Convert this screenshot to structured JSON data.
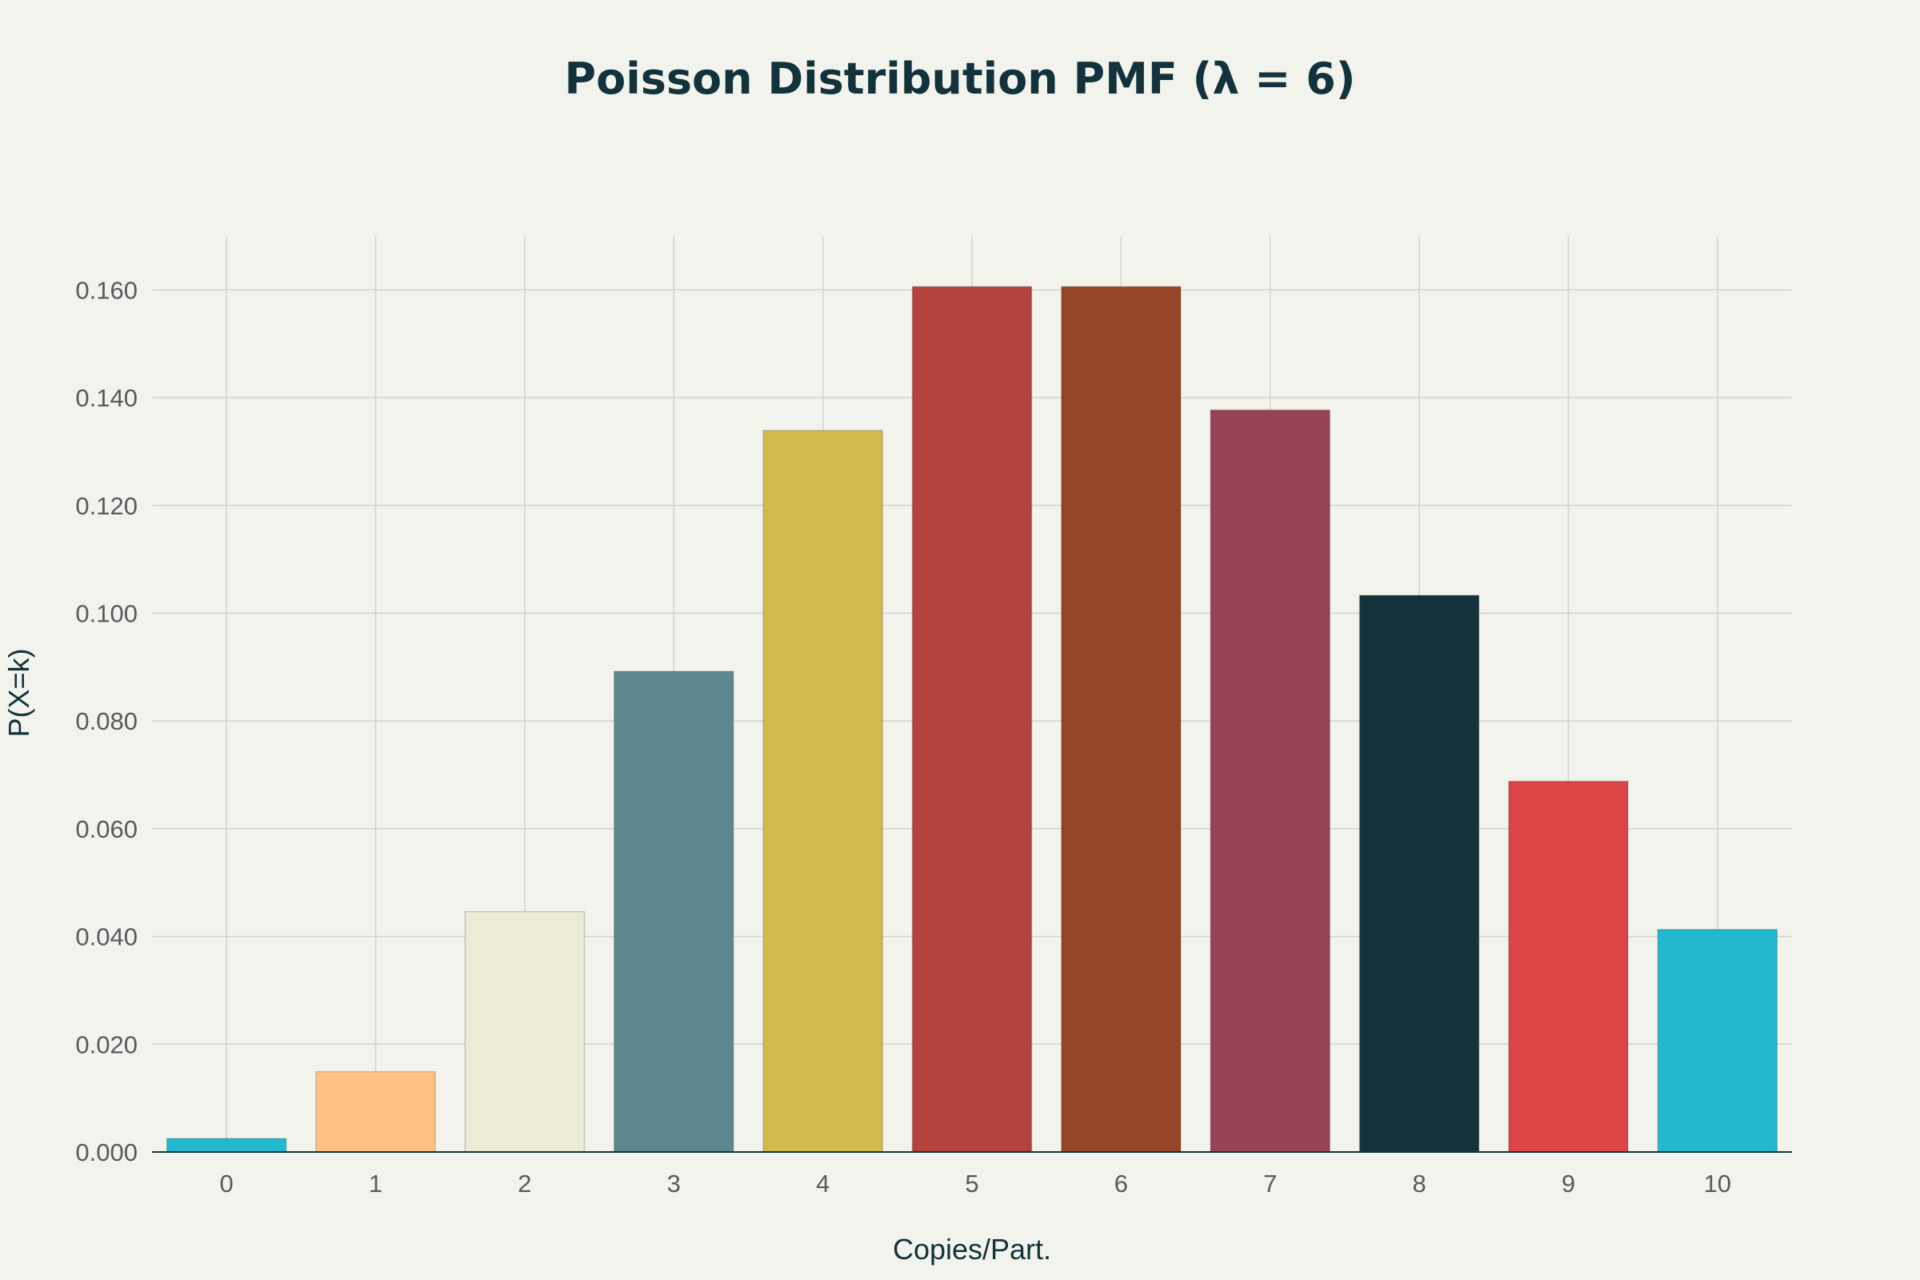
{
  "chart_data": {
    "type": "bar",
    "title": "Poisson Distribution PMF (λ = 6)",
    "xlabel": "Copies/Part.",
    "ylabel": "P(X=k)",
    "categories": [
      "0",
      "1",
      "2",
      "3",
      "4",
      "5",
      "6",
      "7",
      "8",
      "9",
      "10"
    ],
    "values": [
      0.0025,
      0.0149,
      0.0446,
      0.0892,
      0.1339,
      0.1606,
      0.1606,
      0.1377,
      0.1033,
      0.0688,
      0.0413
    ],
    "colors": [
      "#21b8cd",
      "#ffc185",
      "#ecebd5",
      "#5d878f",
      "#d2ba4c",
      "#b4413c",
      "#944525",
      "#964355",
      "#13343b",
      "#db4545",
      "#21b8cd"
    ],
    "ylim": [
      0,
      0.17
    ],
    "yticks": [
      0,
      0.02,
      0.04,
      0.06,
      0.08,
      0.1,
      0.12,
      0.14,
      0.16
    ],
    "ytick_labels": [
      "0.000",
      "0.020",
      "0.040",
      "0.060",
      "0.080",
      "0.100",
      "0.120",
      "0.140",
      "0.160"
    ],
    "grid": true,
    "legend": "none"
  }
}
